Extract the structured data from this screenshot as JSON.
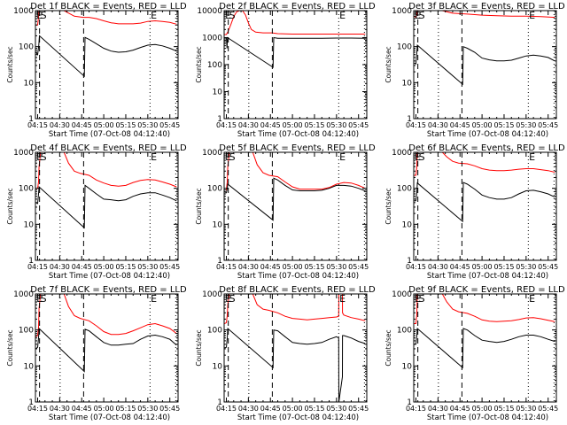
{
  "chart_data": {
    "type": "line",
    "layout": "3x3 grid",
    "shared": {
      "xlabel": "Start Time (07-Oct-08 04:12:40)",
      "ylabel": "Counts/sec",
      "yscale": "log",
      "x_range_minutes": [
        13.5,
        110.6
      ],
      "x_ticks": [
        {
          "label": "04:15",
          "minute": 15
        },
        {
          "label": "04:30",
          "minute": 30
        },
        {
          "label": "04:45",
          "minute": 45
        },
        {
          "label": "05:00",
          "minute": 60
        },
        {
          "label": "05:15",
          "minute": 75
        },
        {
          "label": "05:30",
          "minute": 90
        },
        {
          "label": "05:45",
          "minute": 105
        }
      ],
      "dashed_lines_minutes": [
        16.3,
        46.3
      ],
      "dotted_lines_minutes": [
        30.3,
        91.5,
        109.0
      ],
      "markers": [
        {
          "label": "E",
          "minute": 14.2
        },
        {
          "label": "S",
          "minute": 16.9
        },
        {
          "label": "E",
          "minute": 92.0
        }
      ],
      "series_colors": {
        "events": "#000000",
        "lld": "#ff0000"
      }
    },
    "panels": [
      {
        "title": "Det 1f BLACK = Events, RED = LLD",
        "ylim": [
          1,
          1000
        ],
        "y_ticks": [
          "1",
          "10",
          "100",
          "1000"
        ],
        "series": [
          {
            "name": "Events",
            "x": [
              13.8,
              15,
              15.8,
              16.2,
              46.8,
              47.3,
              50,
              55,
              60,
              65,
              70,
              75,
              80,
              85,
              90,
              95,
              100,
              105,
              109.5
            ],
            "y": [
              70,
              60,
              110,
              200,
              15,
              180,
              160,
              120,
              90,
              75,
              70,
              72,
              80,
              95,
              110,
              115,
              105,
              90,
              75
            ]
          },
          {
            "name": "LLD",
            "x": [
              13.8,
              15,
              15.6,
              16,
              33,
              40,
              46,
              50,
              55,
              60,
              65,
              70,
              75,
              80,
              85,
              90,
              95,
              100,
              105,
              109.5
            ],
            "y": [
              400,
              400,
              650,
              1000,
              1000,
              700,
              650,
              650,
              600,
              520,
              460,
              430,
              430,
              430,
              450,
              500,
              520,
              500,
              470,
              420
            ]
          }
        ]
      },
      {
        "title": "Det 2f BLACK = Events, RED = LLD",
        "ylim": [
          1,
          10000
        ],
        "y_ticks": [
          "1",
          "10",
          "100",
          "1000",
          "10000"
        ],
        "series": [
          {
            "name": "Events",
            "x": [
              13.8,
              15,
              15.4,
              15.8,
              46.8,
              47.3,
              50,
              60,
              70,
              80,
              90,
              100,
              109.5
            ],
            "y": [
              1000,
              1000,
              400,
              1000,
              80,
              1000,
              950,
              950,
              950,
              950,
              960,
              960,
              950
            ]
          },
          {
            "name": "LLD",
            "x": [
              13.8,
              15,
              16,
              18,
              20,
              22,
              24,
              26,
              28,
              30,
              32,
              35,
              40,
              46,
              50,
              60,
              70,
              80,
              90,
              100,
              109.5
            ],
            "y": [
              1300,
              1300,
              1600,
              3000,
              6000,
              9000,
              10000,
              10000,
              7000,
              3500,
              2000,
              1600,
              1500,
              1500,
              1400,
              1350,
              1350,
              1350,
              1350,
              1350,
              1350
            ]
          }
        ]
      },
      {
        "title": "Det 3f BLACK = Events, RED = LLD",
        "ylim": [
          1,
          1000
        ],
        "y_ticks": [
          "1",
          "10",
          "100",
          "1000"
        ],
        "series": [
          {
            "name": "Events",
            "x": [
              13.8,
              15,
              15.6,
              16,
              46.8,
              47.3,
              50,
              55,
              60,
              65,
              70,
              75,
              80,
              85,
              90,
              95,
              100,
              105,
              109.5
            ],
            "y": [
              35,
              33,
              70,
              110,
              9,
              100,
              90,
              70,
              48,
              43,
              40,
              40,
              42,
              48,
              55,
              58,
              55,
              50,
              40
            ]
          },
          {
            "name": "LLD",
            "x": [
              13.8,
              15,
              15.8,
              16,
              33,
              40,
              46,
              50,
              60,
              70,
              80,
              90,
              100,
              109.5
            ],
            "y": [
              700,
              650,
              800,
              1000,
              1000,
              850,
              820,
              800,
              750,
              720,
              700,
              700,
              680,
              650
            ]
          }
        ]
      },
      {
        "title": "Det 4f BLACK = Events, RED = LLD",
        "ylim": [
          1,
          1000
        ],
        "y_ticks": [
          "1",
          "10",
          "100",
          "1000"
        ],
        "series": [
          {
            "name": "Events",
            "x": [
              13.8,
              15,
              15.6,
              16,
              46.8,
              47.3,
              50,
              55,
              60,
              65,
              70,
              75,
              80,
              85,
              90,
              95,
              100,
              105,
              109.5
            ],
            "y": [
              40,
              38,
              70,
              110,
              8,
              120,
              100,
              70,
              50,
              48,
              45,
              48,
              60,
              70,
              75,
              75,
              65,
              55,
              45
            ]
          },
          {
            "name": "LLD",
            "x": [
              13.8,
              15,
              15.6,
              16,
              17,
              33,
              36,
              40,
              44,
              50,
              55,
              60,
              65,
              70,
              75,
              80,
              85,
              90,
              95,
              100,
              105,
              109.5
            ],
            "y": [
              100,
              100,
              150,
              400,
              1000,
              1000,
              500,
              300,
              260,
              230,
              170,
              140,
              120,
              115,
              120,
              145,
              165,
              175,
              170,
              150,
              130,
              110
            ]
          }
        ]
      },
      {
        "title": "Det 5f BLACK = Events, RED = LLD",
        "ylim": [
          1,
          1000
        ],
        "y_ticks": [
          "1",
          "10",
          "100",
          "1000"
        ],
        "series": [
          {
            "name": "Events",
            "x": [
              13.8,
              15,
              15.6,
              16,
              46.8,
              47.3,
              50,
              55,
              60,
              65,
              70,
              75,
              80,
              85,
              90,
              95,
              100,
              105,
              109.5
            ],
            "y": [
              80,
              75,
              100,
              130,
              13,
              190,
              170,
              120,
              90,
              85,
              85,
              85,
              88,
              100,
              120,
              120,
              115,
              100,
              85
            ]
          },
          {
            "name": "LLD",
            "x": [
              13.8,
              15,
              15.6,
              16,
              17,
              33,
              36,
              40,
              44,
              50,
              55,
              60,
              65,
              70,
              75,
              80,
              85,
              90,
              95,
              100,
              105,
              109.5
            ],
            "y": [
              90,
              90,
              150,
              400,
              1000,
              1000,
              450,
              270,
              230,
              210,
              150,
              110,
              95,
              95,
              95,
              95,
              105,
              130,
              145,
              140,
              120,
              100
            ]
          }
        ]
      },
      {
        "title": "Det 6f BLACK = Events, RED = LLD",
        "ylim": [
          1,
          1000
        ],
        "y_ticks": [
          "1",
          "10",
          "100",
          "1000"
        ],
        "series": [
          {
            "name": "Events",
            "x": [
              13.8,
              15,
              15.6,
              16,
              46.8,
              47.3,
              50,
              55,
              60,
              65,
              70,
              75,
              80,
              85,
              90,
              95,
              100,
              105,
              109.5
            ],
            "y": [
              45,
              45,
              80,
              140,
              12,
              145,
              130,
              95,
              65,
              55,
              50,
              50,
              55,
              70,
              85,
              88,
              80,
              70,
              57
            ]
          },
          {
            "name": "LLD",
            "x": [
              13.8,
              15,
              15.6,
              16,
              33,
              36,
              40,
              44,
              50,
              55,
              60,
              65,
              70,
              75,
              80,
              85,
              90,
              95,
              100,
              105,
              109.5
            ],
            "y": [
              230,
              230,
              400,
              1000,
              1000,
              750,
              560,
              500,
              480,
              420,
              350,
              320,
              310,
              310,
              320,
              340,
              350,
              350,
              330,
              310,
              280
            ]
          }
        ]
      },
      {
        "title": "Det 7f BLACK = Events, RED = LLD",
        "ylim": [
          1,
          1000
        ],
        "y_ticks": [
          "1",
          "10",
          "100",
          "1000"
        ],
        "series": [
          {
            "name": "Events",
            "x": [
              13.8,
              15,
              15.6,
              16,
              46.8,
              47.3,
              50,
              55,
              60,
              65,
              70,
              75,
              80,
              85,
              90,
              95,
              100,
              105,
              109.5
            ],
            "y": [
              30,
              33,
              60,
              110,
              7,
              105,
              95,
              65,
              45,
              38,
              38,
              40,
              42,
              55,
              68,
              72,
              65,
              55,
              38
            ]
          },
          {
            "name": "LLD",
            "x": [
              13.8,
              15,
              15.6,
              16,
              17,
              33,
              36,
              40,
              44,
              50,
              55,
              60,
              65,
              70,
              75,
              80,
              85,
              90,
              95,
              100,
              105,
              109.5
            ],
            "y": [
              65,
              70,
              120,
              400,
              1000,
              1000,
              450,
              250,
              210,
              180,
              130,
              90,
              75,
              75,
              80,
              95,
              115,
              140,
              150,
              130,
              110,
              80
            ]
          }
        ]
      },
      {
        "title": "Det 8f BLACK = Events, RED = LLD",
        "ylim": [
          1,
          1000
        ],
        "y_ticks": [
          "1",
          "10",
          "100",
          "1000"
        ],
        "series": [
          {
            "name": "Events",
            "x": [
              13.8,
              15,
              15.6,
              16,
              46.8,
              47.3,
              50,
              55,
              60,
              65,
              70,
              75,
              80,
              85,
              90,
              91.5,
              91.6,
              94,
              94.1,
              95,
              100,
              105,
              109.5
            ],
            "y": [
              32,
              33,
              60,
              110,
              9,
              100,
              95,
              65,
              45,
              42,
              40,
              42,
              45,
              55,
              65,
              60,
              1,
              5,
              70,
              70,
              60,
              48,
              42
            ]
          },
          {
            "name": "LLD",
            "x": [
              13.8,
              15,
              15.6,
              16,
              17,
              33,
              36,
              40,
              44,
              50,
              55,
              60,
              65,
              70,
              75,
              80,
              85,
              90,
              91.5,
              91.6,
              94,
              94.1,
              95,
              100,
              105,
              109.5
            ],
            "y": [
              150,
              160,
              250,
              500,
              1000,
              1000,
              500,
              380,
              350,
              300,
              240,
              210,
              200,
              190,
              200,
              210,
              220,
              230,
              240,
              1000,
              1000,
              300,
              260,
              220,
              200,
              180
            ]
          }
        ]
      },
      {
        "title": "Det 9f BLACK = Events, RED = LLD",
        "ylim": [
          1,
          1000
        ],
        "y_ticks": [
          "1",
          "10",
          "100",
          "1000"
        ],
        "series": [
          {
            "name": "Events",
            "x": [
              13.8,
              15,
              15.6,
              16,
              46.8,
              47.3,
              50,
              55,
              60,
              65,
              70,
              75,
              80,
              85,
              90,
              95,
              100,
              105,
              109.5
            ],
            "y": [
              40,
              40,
              70,
              110,
              9,
              110,
              100,
              70,
              52,
              48,
              45,
              48,
              55,
              65,
              72,
              72,
              65,
              55,
              48
            ]
          },
          {
            "name": "LLD",
            "x": [
              13.8,
              15,
              15.6,
              16,
              33,
              36,
              40,
              44,
              50,
              55,
              60,
              65,
              70,
              75,
              80,
              85,
              90,
              95,
              100,
              105,
              109.5
            ],
            "y": [
              150,
              150,
              280,
              1000,
              1000,
              600,
              380,
              320,
              290,
              240,
              190,
              175,
              170,
              175,
              180,
              195,
              215,
              220,
              205,
              185,
              170
            ]
          }
        ]
      }
    ]
  }
}
